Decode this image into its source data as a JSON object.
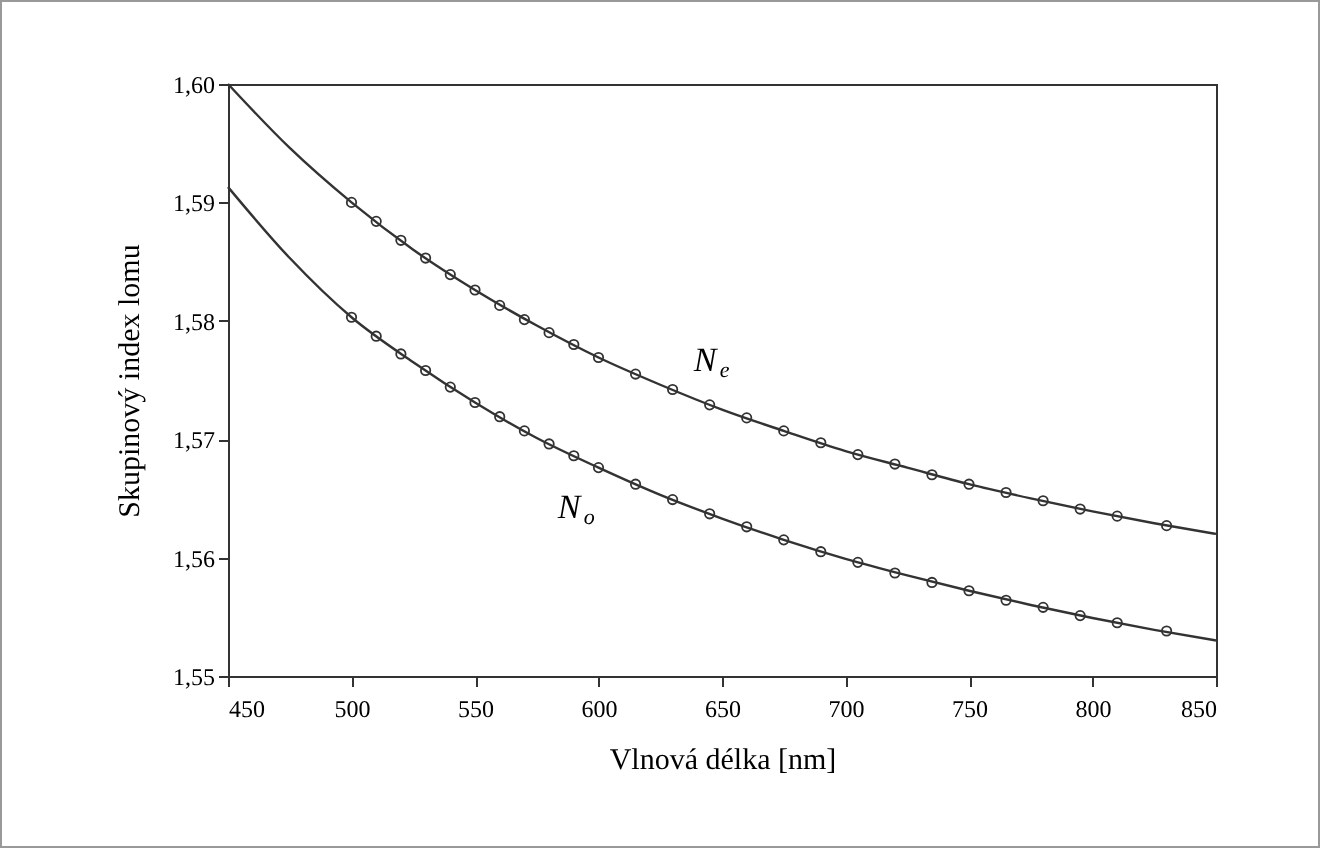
{
  "chart_data": {
    "type": "scatter",
    "xlabel": "Vlnová délka [nm]",
    "ylabel": "Skupinový index lomu",
    "xlim": [
      450,
      850
    ],
    "xticks": [
      450,
      500,
      550,
      600,
      650,
      700,
      750,
      800,
      850
    ],
    "ylim": [
      1.55,
      1.6
    ],
    "yticks": [
      {
        "value": 1.55,
        "label": "1,55"
      },
      {
        "value": 1.56,
        "label": "1,56"
      },
      {
        "value": 1.57,
        "label": "1,57"
      },
      {
        "value": 1.58,
        "label": "1,58"
      },
      {
        "value": 1.59,
        "label": "1,59"
      },
      {
        "value": 1.6,
        "label": "1,60"
      }
    ],
    "grid": false,
    "series": [
      {
        "type": "scatter",
        "name": "N$_{e}$",
        "marker": "circle",
        "color": "#333333",
        "x": [
          500,
          510,
          520,
          530,
          540,
          550,
          560,
          570,
          580,
          590,
          600,
          615,
          630,
          645,
          660,
          675,
          690,
          705,
          720,
          735,
          750,
          765,
          780,
          795,
          810,
          830
        ],
        "values": [
          1.59,
          1.5884,
          1.5868,
          1.5853,
          1.5839,
          1.5826,
          1.5813,
          1.5801,
          1.579,
          1.578,
          1.5769,
          1.5755,
          1.5742,
          1.5729,
          1.5718,
          1.5707,
          1.5697,
          1.5687,
          1.5679,
          1.567,
          1.5662,
          1.5655,
          1.5648,
          1.5641,
          1.5635,
          1.5627
        ]
      },
      {
        "type": "scatter",
        "name": "N$_{o}$",
        "marker": "circle",
        "color": "#333333",
        "x": [
          500,
          510,
          520,
          530,
          540,
          550,
          560,
          570,
          580,
          590,
          600,
          615,
          630,
          645,
          660,
          675,
          690,
          705,
          720,
          735,
          750,
          765,
          780,
          795,
          810,
          830
        ],
        "values": [
          1.5803,
          1.5787,
          1.5772,
          1.5758,
          1.5744,
          1.5731,
          1.5719,
          1.5707,
          1.5696,
          1.5686,
          1.5676,
          1.5662,
          1.5649,
          1.5637,
          1.5626,
          1.5615,
          1.5605,
          1.5596,
          1.5587,
          1.5579,
          1.5572,
          1.5564,
          1.5558,
          1.5551,
          1.5545,
          1.5538
        ]
      },
      {
        "type": "line",
        "marker": "none",
        "color": "#333333",
        "x": [
          450,
          475,
          500,
          525,
          550,
          575,
          600,
          625,
          650,
          675,
          700,
          725,
          750,
          775,
          800,
          825,
          850
        ],
        "values": [
          1.6,
          1.5946,
          1.59,
          1.586,
          1.5826,
          1.5796,
          1.5769,
          1.5746,
          1.5725,
          1.5707,
          1.569,
          1.5676,
          1.5662,
          1.565,
          1.5639,
          1.5629,
          1.562
        ]
      },
      {
        "type": "line",
        "marker": "none",
        "color": "#333333",
        "x": [
          450,
          475,
          500,
          525,
          550,
          575,
          600,
          625,
          650,
          675,
          700,
          725,
          750,
          775,
          800,
          825,
          850
        ],
        "values": [
          1.5913,
          1.5853,
          1.5803,
          1.5765,
          1.5731,
          1.5701,
          1.5676,
          1.5653,
          1.5633,
          1.5615,
          1.5599,
          1.5585,
          1.5572,
          1.556,
          1.5549,
          1.5539,
          1.553
        ]
      }
    ]
  }
}
